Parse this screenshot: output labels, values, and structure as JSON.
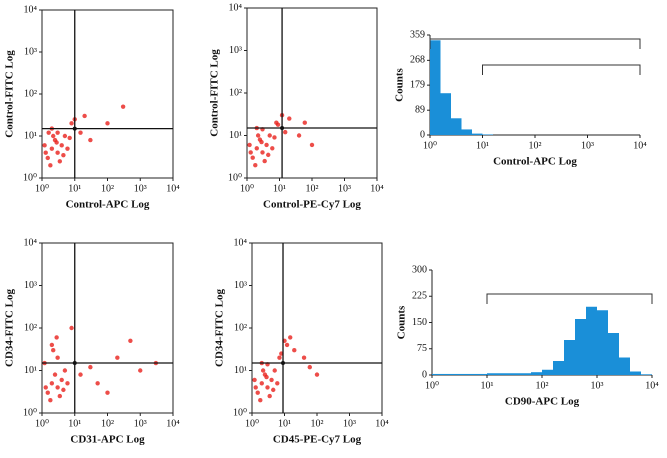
{
  "chart_data": [
    {
      "type": "scatter",
      "xlabel": "Control-APC Log",
      "ylabel": "Control-FITC Log",
      "xscale": "log",
      "yscale": "log",
      "color": "#e8201c",
      "xlim": [
        1,
        10000
      ],
      "ylim": [
        1,
        10000
      ],
      "xticks": [
        {
          "value": 1,
          "label": "10⁰"
        },
        {
          "value": 10,
          "label": "10¹"
        },
        {
          "value": 100,
          "label": "10²"
        },
        {
          "value": 1000,
          "label": "10³"
        },
        {
          "value": 10000,
          "label": "10⁴"
        }
      ],
      "yticks": [
        {
          "value": 1,
          "label": "10⁰"
        },
        {
          "value": 10,
          "label": "10¹"
        },
        {
          "value": 100,
          "label": "10²"
        },
        {
          "value": 1000,
          "label": "10³"
        },
        {
          "value": 10000,
          "label": "10⁴"
        }
      ],
      "gate": {
        "x": 10,
        "y": 15
      },
      "x": [
        1.5,
        2,
        3,
        2.5,
        4,
        1.8,
        5,
        3,
        6,
        2,
        8,
        10,
        20,
        15,
        30,
        100,
        300,
        1.2,
        3.5,
        2.2,
        1.3,
        2.8,
        4.5,
        7,
        1.6
      ],
      "values": [
        3,
        5,
        4,
        8,
        6,
        2,
        10,
        12,
        5,
        15,
        20,
        25,
        30,
        12,
        8,
        20,
        50,
        6,
        2.5,
        10,
        4,
        7,
        3.5,
        9,
        12
      ]
    },
    {
      "type": "scatter",
      "xlabel": "Control-PE-Cy7 Log",
      "ylabel": "Control-FITC Log",
      "xscale": "log",
      "yscale": "log",
      "color": "#e8201c",
      "xlim": [
        1,
        10000
      ],
      "ylim": [
        1,
        10000
      ],
      "xticks": [
        {
          "value": 1,
          "label": "10⁰"
        },
        {
          "value": 10,
          "label": "10¹"
        },
        {
          "value": 100,
          "label": "10²"
        },
        {
          "value": 1000,
          "label": "10³"
        },
        {
          "value": 10000,
          "label": "10⁴"
        }
      ],
      "yticks": [
        {
          "value": 1,
          "label": "10⁰"
        },
        {
          "value": 10,
          "label": "10¹"
        },
        {
          "value": 100,
          "label": "10²"
        },
        {
          "value": 1000,
          "label": "10³"
        },
        {
          "value": 10000,
          "label": "10⁴"
        }
      ],
      "gate": {
        "x": 12,
        "y": 15
      },
      "x": [
        1.5,
        2,
        3,
        2.5,
        4,
        1.8,
        5,
        3,
        6,
        2,
        8,
        12,
        20,
        15,
        40,
        60,
        100,
        1.2,
        3.5,
        2.2,
        1.3,
        2.8,
        4.5,
        7,
        9
      ],
      "values": [
        3,
        5,
        4,
        8,
        6,
        2,
        10,
        14,
        5,
        15,
        20,
        30,
        25,
        12,
        10,
        20,
        6,
        6,
        2.5,
        10,
        4,
        7,
        3.5,
        9,
        18
      ]
    },
    {
      "type": "histogram",
      "xlabel": "Control-APC Log",
      "ylabel": "Counts",
      "xscale": "log",
      "color": "#1a8fd8",
      "xlim": [
        1,
        10000
      ],
      "ylim": [
        0,
        359
      ],
      "xticks": [
        {
          "value": 1,
          "label": "10⁰"
        },
        {
          "value": 10,
          "label": "10¹"
        },
        {
          "value": 100,
          "label": "10²"
        },
        {
          "value": 1000,
          "label": "10³"
        },
        {
          "value": 10000,
          "label": "10⁴"
        }
      ],
      "yticks": [
        0,
        89,
        179,
        268,
        359
      ],
      "gates": [
        [
          1,
          10000
        ],
        [
          10,
          10000
        ]
      ],
      "bins": [
        1,
        1.585,
        2.512,
        3.981,
        6.31,
        10,
        15.85,
        25.12,
        39.81,
        63.1,
        100,
        158.5,
        251.2,
        398.1,
        631,
        1000,
        1585,
        2512,
        3981,
        6310,
        10000
      ],
      "values": [
        340,
        150,
        60,
        20,
        5,
        2,
        0,
        0,
        0,
        0,
        0,
        0,
        0,
        0,
        0,
        0,
        0,
        0,
        0,
        0
      ]
    },
    {
      "type": "scatter",
      "xlabel": "CD31-APC Log",
      "ylabel": "CD34-FITC Log",
      "xscale": "log",
      "yscale": "log",
      "color": "#e8201c",
      "xlim": [
        1,
        10000
      ],
      "ylim": [
        1,
        10000
      ],
      "xticks": [
        {
          "value": 1,
          "label": "10⁰"
        },
        {
          "value": 10,
          "label": "10¹"
        },
        {
          "value": 100,
          "label": "10²"
        },
        {
          "value": 1000,
          "label": "10³"
        },
        {
          "value": 10000,
          "label": "10⁴"
        }
      ],
      "yticks": [
        {
          "value": 1,
          "label": "10⁰"
        },
        {
          "value": 10,
          "label": "10¹"
        },
        {
          "value": 100,
          "label": "10²"
        },
        {
          "value": 1000,
          "label": "10³"
        },
        {
          "value": 10000,
          "label": "10⁴"
        }
      ],
      "gate": {
        "x": 10,
        "y": 15
      },
      "x": [
        1.5,
        2,
        3,
        2.5,
        4,
        1.8,
        5,
        3,
        6,
        2,
        8,
        15,
        30,
        50,
        200,
        500,
        1000,
        1.2,
        3.5,
        2.2,
        1.3,
        2.8,
        4.5,
        100,
        3000
      ],
      "values": [
        3,
        5,
        4,
        8,
        6,
        2,
        10,
        20,
        5,
        40,
        100,
        8,
        12,
        5,
        20,
        50,
        10,
        15,
        2.5,
        30,
        4,
        60,
        3.5,
        3,
        15
      ]
    },
    {
      "type": "scatter",
      "xlabel": "CD45-PE-Cy7 Log",
      "ylabel": "CD34-FITC Log",
      "xscale": "log",
      "yscale": "log",
      "color": "#e8201c",
      "xlim": [
        1,
        10000
      ],
      "ylim": [
        1,
        10000
      ],
      "xticks": [
        {
          "value": 1,
          "label": "10⁰"
        },
        {
          "value": 10,
          "label": "10¹"
        },
        {
          "value": 100,
          "label": "10²"
        },
        {
          "value": 1000,
          "label": "10³"
        },
        {
          "value": 10000,
          "label": "10⁴"
        }
      ],
      "yticks": [
        {
          "value": 1,
          "label": "10⁰"
        },
        {
          "value": 10,
          "label": "10¹"
        },
        {
          "value": 100,
          "label": "10²"
        },
        {
          "value": 1000,
          "label": "10³"
        },
        {
          "value": 10000,
          "label": "10⁴"
        }
      ],
      "gate": {
        "x": 9,
        "y": 15
      },
      "x": [
        1.5,
        2,
        3,
        2.5,
        4,
        1.8,
        5,
        3,
        6,
        2,
        8,
        12,
        20,
        15,
        40,
        60,
        100,
        1.2,
        3.5,
        2.2,
        1.3,
        2.8,
        4.5,
        7,
        10
      ],
      "values": [
        3,
        5,
        4,
        8,
        6,
        2,
        10,
        14,
        5,
        15,
        25,
        40,
        30,
        60,
        20,
        12,
        8,
        6,
        2.5,
        10,
        4,
        7,
        3.5,
        20,
        50
      ]
    },
    {
      "type": "histogram",
      "xlabel": "CD90-APC Log",
      "ylabel": "Counts",
      "xscale": "log",
      "color": "#1a8fd8",
      "xlim": [
        1,
        10000
      ],
      "ylim": [
        0,
        300
      ],
      "xticks": [
        {
          "value": 1,
          "label": "10⁰"
        },
        {
          "value": 10,
          "label": "10¹"
        },
        {
          "value": 100,
          "label": "10²"
        },
        {
          "value": 1000,
          "label": "10³"
        },
        {
          "value": 10000,
          "label": "10⁴"
        }
      ],
      "yticks": [
        0,
        75,
        150,
        225,
        300
      ],
      "gates": [
        [
          10,
          10000
        ]
      ],
      "bins": [
        1,
        1.585,
        2.512,
        3.981,
        6.31,
        10,
        15.85,
        25.12,
        39.81,
        63.1,
        100,
        158.5,
        251.2,
        398.1,
        631,
        1000,
        1585,
        2512,
        3981,
        6310,
        10000
      ],
      "values": [
        3,
        3,
        3,
        3,
        3,
        5,
        5,
        5,
        5,
        8,
        15,
        40,
        100,
        160,
        195,
        185,
        120,
        50,
        10,
        2
      ]
    }
  ]
}
